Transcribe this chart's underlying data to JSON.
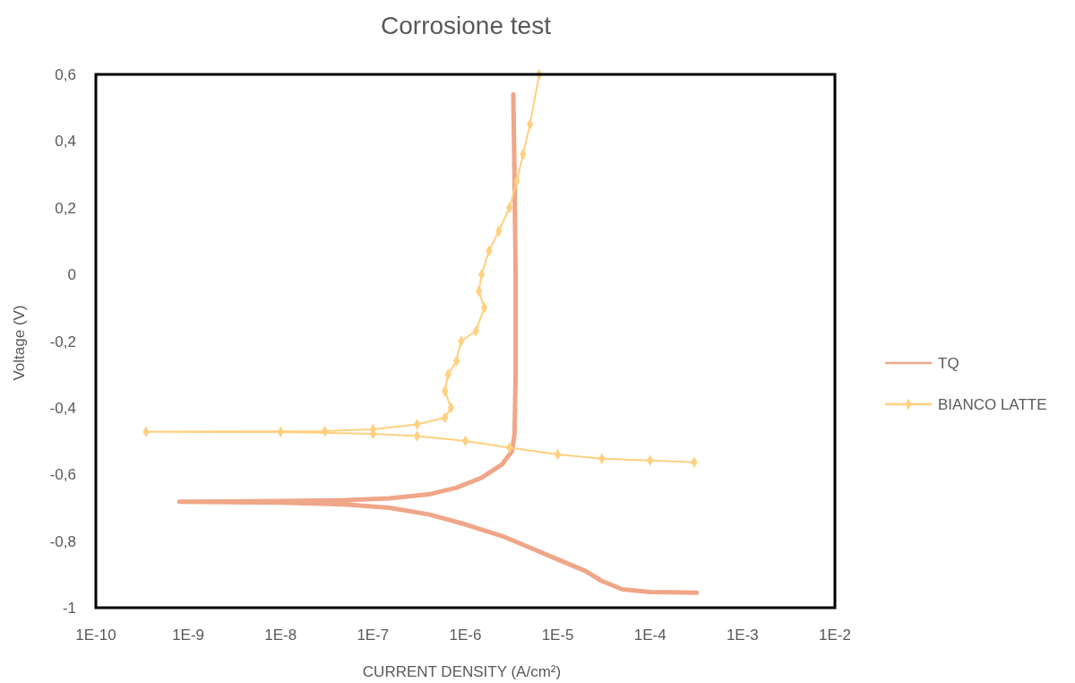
{
  "chart_data": {
    "type": "line",
    "title": "Corrosione test",
    "xlabel": "CURRENT DENSITY (A/cm²)",
    "ylabel": "Voltage (V)",
    "log": "x",
    "grid": false,
    "legend": "right",
    "xlim": [
      1e-10,
      0.01
    ],
    "xticks": [
      {
        "value": 1e-10,
        "label": "1E-10"
      },
      {
        "value": 1e-09,
        "label": "1E-9"
      },
      {
        "value": 1e-08,
        "label": "1E-8"
      },
      {
        "value": 1e-07,
        "label": "1E-7"
      },
      {
        "value": 1e-06,
        "label": "1E-6"
      },
      {
        "value": 1e-05,
        "label": "1E-5"
      },
      {
        "value": 0.0001,
        "label": "1E-4"
      },
      {
        "value": 0.001,
        "label": "1E-3"
      },
      {
        "value": 0.01,
        "label": "1E-2"
      }
    ],
    "ylim": [
      -1,
      0.6
    ],
    "yticks": [
      {
        "value": -1,
        "label": "-1"
      },
      {
        "value": -0.8,
        "label": "-0,8"
      },
      {
        "value": -0.6,
        "label": "-0,6"
      },
      {
        "value": -0.4,
        "label": "-0,4"
      },
      {
        "value": -0.2,
        "label": "-0,2"
      },
      0,
      {
        "value": 0.2,
        "label": "0,2"
      },
      {
        "value": 0.4,
        "label": "0,4"
      },
      {
        "value": 0.6,
        "label": "0,6"
      }
    ],
    "series": [
      {
        "name": "TQ",
        "color": "#f0a688",
        "marker": "none",
        "x": [
          0.00032,
          0.0001,
          5e-05,
          3e-05,
          2e-05,
          1e-05,
          5e-06,
          2.5e-06,
          1e-06,
          4e-07,
          1.5e-07,
          5e-08,
          1e-08,
          8e-10,
          1e-08,
          5e-08,
          1.5e-07,
          4e-07,
          8e-07,
          1.5e-06,
          2.5e-06,
          3.2e-06,
          3.4e-06,
          3.5e-06,
          3.5e-06,
          3.4e-06,
          3.3e-06
        ],
        "values": [
          -0.955,
          -0.953,
          -0.945,
          -0.92,
          -0.89,
          -0.855,
          -0.82,
          -0.785,
          -0.75,
          -0.72,
          -0.7,
          -0.69,
          -0.685,
          -0.682,
          -0.68,
          -0.677,
          -0.672,
          -0.66,
          -0.64,
          -0.61,
          -0.57,
          -0.53,
          -0.48,
          -0.3,
          0,
          0.3,
          0.54
        ]
      },
      {
        "name": "BIANCO LATTE",
        "color": "#ffd07f",
        "marker": "diamond",
        "x": [
          0.0003,
          0.0001,
          3e-05,
          1e-05,
          3e-06,
          1e-06,
          3e-07,
          1e-07,
          1e-08,
          3.5e-10,
          3e-08,
          1e-07,
          3e-07,
          6e-07,
          7e-07,
          6e-07,
          6.5e-07,
          8e-07,
          9e-07,
          1.3e-06,
          1.6e-06,
          1.4e-06,
          1.5e-06,
          1.8e-06,
          2.3e-06,
          3e-06,
          3.6e-06,
          4.2e-06,
          5e-06,
          6.3e-06
        ],
        "values": [
          -0.564,
          -0.558,
          -0.553,
          -0.54,
          -0.52,
          -0.5,
          -0.485,
          -0.478,
          -0.473,
          -0.472,
          -0.47,
          -0.465,
          -0.45,
          -0.43,
          -0.4,
          -0.35,
          -0.3,
          -0.26,
          -0.2,
          -0.17,
          -0.1,
          -0.05,
          0,
          0.07,
          0.13,
          0.2,
          0.28,
          0.36,
          0.45,
          0.6
        ]
      }
    ]
  }
}
